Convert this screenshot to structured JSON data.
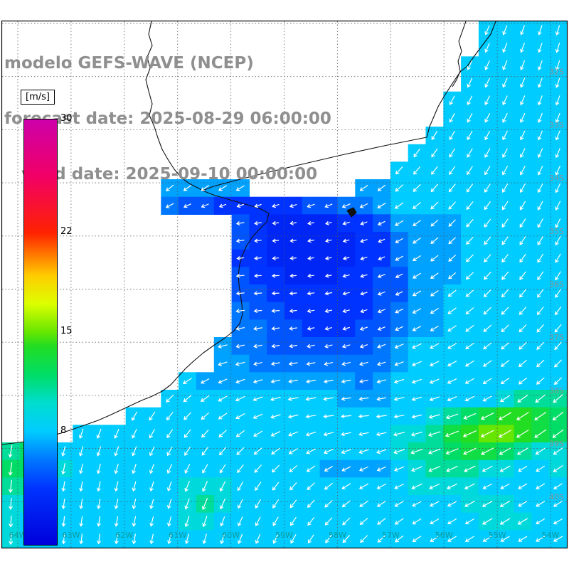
{
  "header": {
    "line1": "modelo GEFS-WAVE (NCEP)",
    "line2": "forecast date: 2025-08-29 06:00:00",
    "line3": "   valid date: 2025-09-10 00:00:00",
    "text_color": "#8f8f8f"
  },
  "colorbar": {
    "unit": "[m/s]",
    "min": 0,
    "max": 30,
    "ticks": [
      30,
      22,
      15,
      8
    ],
    "stops": [
      {
        "v": 0,
        "c": "#0000dc"
      },
      {
        "v": 4,
        "c": "#0033ff"
      },
      {
        "v": 6,
        "c": "#0077ff"
      },
      {
        "v": 8,
        "c": "#00ccff"
      },
      {
        "v": 10,
        "c": "#00ddd0"
      },
      {
        "v": 12,
        "c": "#00dd66"
      },
      {
        "v": 14,
        "c": "#22dd22"
      },
      {
        "v": 15,
        "c": "#66e600"
      },
      {
        "v": 17,
        "c": "#ddff00"
      },
      {
        "v": 19,
        "c": "#ffcc00"
      },
      {
        "v": 22,
        "c": "#ff2200"
      },
      {
        "v": 26,
        "c": "#f20066"
      },
      {
        "v": 30,
        "c": "#cc00aa"
      }
    ]
  },
  "grid": {
    "lon_labels": [
      "64W",
      "63W",
      "62W",
      "61W",
      "60W",
      "59W",
      "58W",
      "57W",
      "56W",
      "55W",
      "54W"
    ],
    "lat_labels": [
      "32S",
      "33S",
      "34S",
      "35S",
      "36S",
      "37S",
      "38S",
      "39S",
      "40S"
    ],
    "lon_color": "#0c9a9a",
    "lat_color": "#8f8f8f",
    "line_color": "#555555"
  },
  "field": {
    "quantity": "wind speed",
    "units": "m/s",
    "char_values": {
      "a": 3,
      "b": 4,
      "c": 5,
      "d": 6,
      "e": 7,
      "f": 8,
      "g": 9.5,
      "h": 11,
      "i": 12,
      "j": 13,
      "k": 14,
      "l": 15
    },
    "rows": [
      "...........................fffff",
      "...........................fffff",
      "..........................ffffff",
      "..........................ffffff",
      ".........................fffffff",
      ".........................fffffff",
      "........................ffffffff",
      ".......................fffffffff",
      "......................ffffffffff",
      ".........eeeee......eeffffffffff",
      ".........dccbbbbbccddeffffffffff",
      ".............cbaaaabbceeeeffffff",
      ".............cbaaaaabbdeeeffffff",
      ".............bbaaaaabbdeeeffffff",
      ".............cbbaaabbcceeeffffff",
      ".............ccbbbbbbcceefffffff",
      ".............dccbbbbbcdeefffffff",
      ".............ddccbbbccdeefffffff",
      "............eddccccccdefffffffff",
      "............eeddddddddefffffffff",
      "..........feeeeeeeeedeffffffffff",
      ".........ffffffffffeeeffffffghhh",
      ".......fffffffffffffffffghijkkji",
      "....ffffffffffffffffffgghjkllkji",
      "higfffffffffffffffffffghhijjihgg",
      "iihgffffffffffffffeeeefghhhggffg",
      "hhgfffffffgggffffffffffggggfffff",
      "ggffffffffghgfffffffffffffgggfff",
      "gfffffffffggfffffffffffffffgggff",
      "gfffffffffffffffffffffffffffffff"
    ]
  },
  "arrows": {
    "color": "#ffffff",
    "angle_grid": [
      [
        110,
        110,
        110,
        110,
        110,
        112,
        115,
        112,
        105
      ],
      [
        110,
        110,
        110,
        110,
        112,
        115,
        118,
        115,
        108
      ],
      [
        115,
        115,
        118,
        122,
        128,
        130,
        125,
        118,
        112
      ],
      [
        135,
        140,
        155,
        168,
        172,
        162,
        140,
        126,
        116
      ],
      [
        130,
        142,
        162,
        175,
        178,
        166,
        146,
        131,
        121
      ],
      [
        120,
        126,
        146,
        165,
        172,
        162,
        152,
        141,
        131
      ],
      [
        104,
        110,
        121,
        141,
        166,
        176,
        166,
        151,
        141
      ],
      [
        95,
        100,
        106,
        116,
        131,
        151,
        156,
        151,
        146
      ],
      [
        92,
        95,
        100,
        106,
        116,
        131,
        146,
        149,
        151
      ]
    ]
  },
  "coastline": {
    "color": "#111111",
    "main": [
      [
        697,
        30
      ],
      [
        690,
        48
      ],
      [
        678,
        64
      ],
      [
        666,
        80
      ],
      [
        657,
        93
      ],
      [
        648,
        100
      ],
      [
        641,
        110
      ],
      [
        633,
        122
      ],
      [
        624,
        136
      ],
      [
        616,
        150
      ],
      [
        610,
        164
      ],
      [
        604,
        178
      ],
      [
        600,
        193
      ],
      [
        540,
        205
      ],
      [
        480,
        218
      ],
      [
        420,
        232
      ],
      [
        370,
        244
      ],
      [
        330,
        254
      ],
      [
        300,
        262
      ],
      [
        285,
        268
      ],
      [
        300,
        274
      ],
      [
        320,
        280
      ],
      [
        345,
        287
      ],
      [
        365,
        293
      ],
      [
        378,
        300
      ],
      [
        375,
        312
      ],
      [
        365,
        322
      ],
      [
        355,
        333
      ],
      [
        347,
        345
      ],
      [
        341,
        358
      ],
      [
        337,
        372
      ],
      [
        335,
        386
      ],
      [
        336,
        400
      ],
      [
        338,
        414
      ],
      [
        340,
        428
      ],
      [
        341,
        442
      ],
      [
        337,
        455
      ],
      [
        328,
        466
      ],
      [
        315,
        476
      ],
      [
        300,
        486
      ],
      [
        286,
        496
      ],
      [
        273,
        507
      ],
      [
        261,
        518
      ],
      [
        250,
        530
      ],
      [
        240,
        541
      ],
      [
        228,
        550
      ],
      [
        214,
        557
      ],
      [
        199,
        563
      ],
      [
        184,
        570
      ],
      [
        169,
        577
      ],
      [
        154,
        584
      ],
      [
        138,
        591
      ],
      [
        121,
        597
      ],
      [
        104,
        603
      ],
      [
        86,
        609
      ],
      [
        67,
        614
      ],
      [
        48,
        619
      ],
      [
        27,
        622
      ],
      [
        3,
        625
      ]
    ],
    "river_parana": [
      [
        213,
        30
      ],
      [
        209,
        48
      ],
      [
        214,
        64
      ],
      [
        207,
        80
      ],
      [
        211,
        96
      ],
      [
        205,
        112
      ],
      [
        209,
        128
      ],
      [
        214,
        146
      ],
      [
        210,
        162
      ],
      [
        217,
        178
      ],
      [
        222,
        194
      ],
      [
        228,
        210
      ],
      [
        236,
        224
      ],
      [
        245,
        238
      ],
      [
        255,
        250
      ],
      [
        266,
        258
      ],
      [
        278,
        264
      ],
      [
        285,
        268
      ]
    ],
    "river_uruguay": [
      [
        655,
        30
      ],
      [
        650,
        44
      ],
      [
        645,
        58
      ],
      [
        649,
        72
      ],
      [
        644,
        86
      ],
      [
        647,
        100
      ],
      [
        642,
        112
      ],
      [
        636,
        122
      ]
    ],
    "island_marker": [
      [
        488,
        296
      ],
      [
        497,
        292
      ],
      [
        501,
        299
      ],
      [
        494,
        305
      ]
    ]
  }
}
